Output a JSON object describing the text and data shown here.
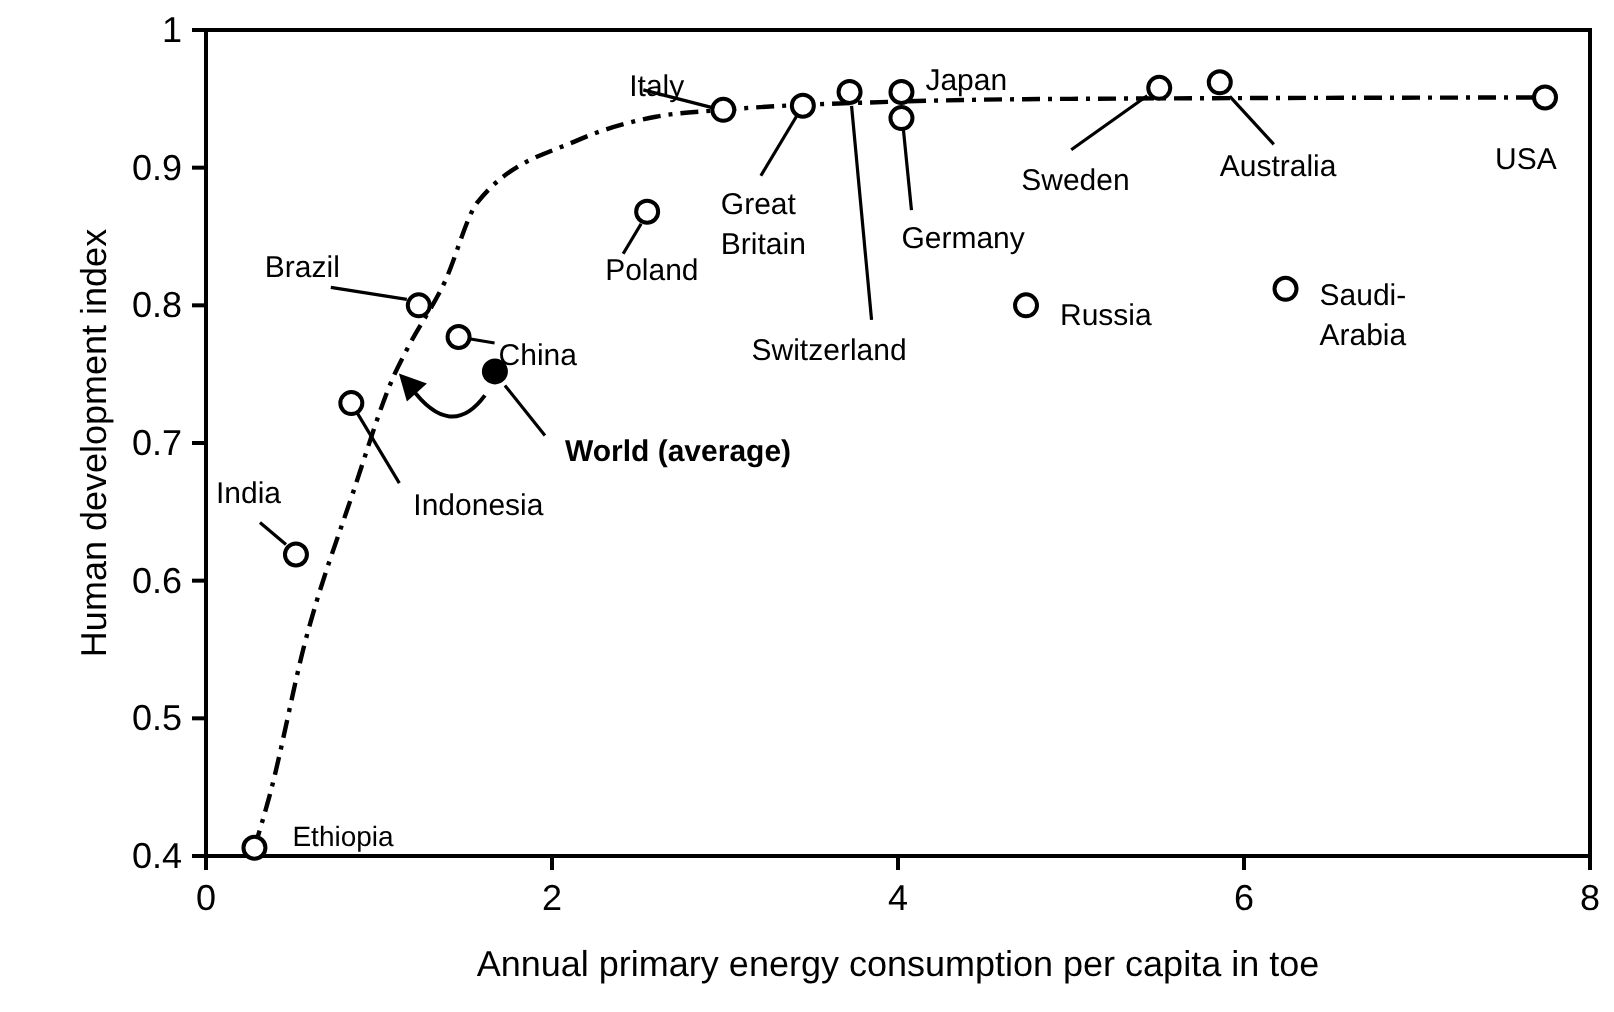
{
  "chart_data": {
    "type": "scatter",
    "xlabel": "Annual primary energy consumption per capita in toe",
    "ylabel": "Human development index",
    "xlim": [
      0,
      8
    ],
    "ylim": [
      0.4,
      1
    ],
    "xticks": [
      0,
      2,
      4,
      6,
      8
    ],
    "yticks": [
      0.4,
      0.5,
      0.6,
      0.7,
      0.8,
      0.9,
      1
    ],
    "grid": false,
    "marker": "circle",
    "series": [
      {
        "color": "#000000",
        "x": [
          0.28,
          0.52,
          0.84,
          1.23,
          1.46,
          2.55,
          2.99,
          3.45,
          3.72,
          4.02,
          4.02,
          4.74,
          5.51,
          5.86,
          6.24,
          7.74
        ],
        "values": [
          0.406,
          0.619,
          0.729,
          0.8,
          0.777,
          0.868,
          0.942,
          0.945,
          0.955,
          0.955,
          0.936,
          0.8,
          0.958,
          0.962,
          0.812,
          0.951
        ]
      },
      {
        "color": "#000000",
        "x": [
          1.67
        ],
        "values": [
          0.752
        ]
      },
      {
        "type": "line",
        "color": "#000000",
        "line_style": "dashed",
        "marker": "none",
        "x": [
          0.28,
          0.37,
          0.57,
          0.85,
          1.09,
          1.17,
          1.38,
          1.57,
          2.15,
          2.6,
          2.99,
          4,
          5,
          7.74
        ],
        "values": [
          0.406,
          0.445,
          0.554,
          0.664,
          0.75,
          0.77,
          0.817,
          0.875,
          0.92,
          0.937,
          0.942,
          0.948,
          0.95,
          0.951
        ]
      }
    ],
    "annotations": [
      {
        "text": "Ethiopia",
        "x": 0.28,
        "y": 0.406
      },
      {
        "text": "India",
        "x": 0.52,
        "y": 0.619
      },
      {
        "text": "Indonesia",
        "x": 0.84,
        "y": 0.729
      },
      {
        "text": "Brazil",
        "x": 1.23,
        "y": 0.8
      },
      {
        "text": "China",
        "x": 1.46,
        "y": 0.777
      },
      {
        "text": "Poland",
        "x": 2.55,
        "y": 0.868
      },
      {
        "text": "Italy",
        "x": 2.99,
        "y": 0.942
      },
      {
        "text": "Great Britain",
        "x": 3.45,
        "y": 0.945
      },
      {
        "text": "Switzerland",
        "x": 3.72,
        "y": 0.955
      },
      {
        "text": "Japan",
        "x": 4.02,
        "y": 0.955
      },
      {
        "text": "Germany",
        "x": 4.02,
        "y": 0.936
      },
      {
        "text": "Russia",
        "x": 4.74,
        "y": 0.8
      },
      {
        "text": "Sweden",
        "x": 5.51,
        "y": 0.958
      },
      {
        "text": "Australia",
        "x": 5.86,
        "y": 0.962
      },
      {
        "text": "Saudi-Arabia",
        "x": 6.24,
        "y": 0.812
      },
      {
        "text": "USA",
        "x": 7.74,
        "y": 0.951
      },
      {
        "text": "World (average)",
        "x": 1.67,
        "y": 0.752
      }
    ]
  }
}
